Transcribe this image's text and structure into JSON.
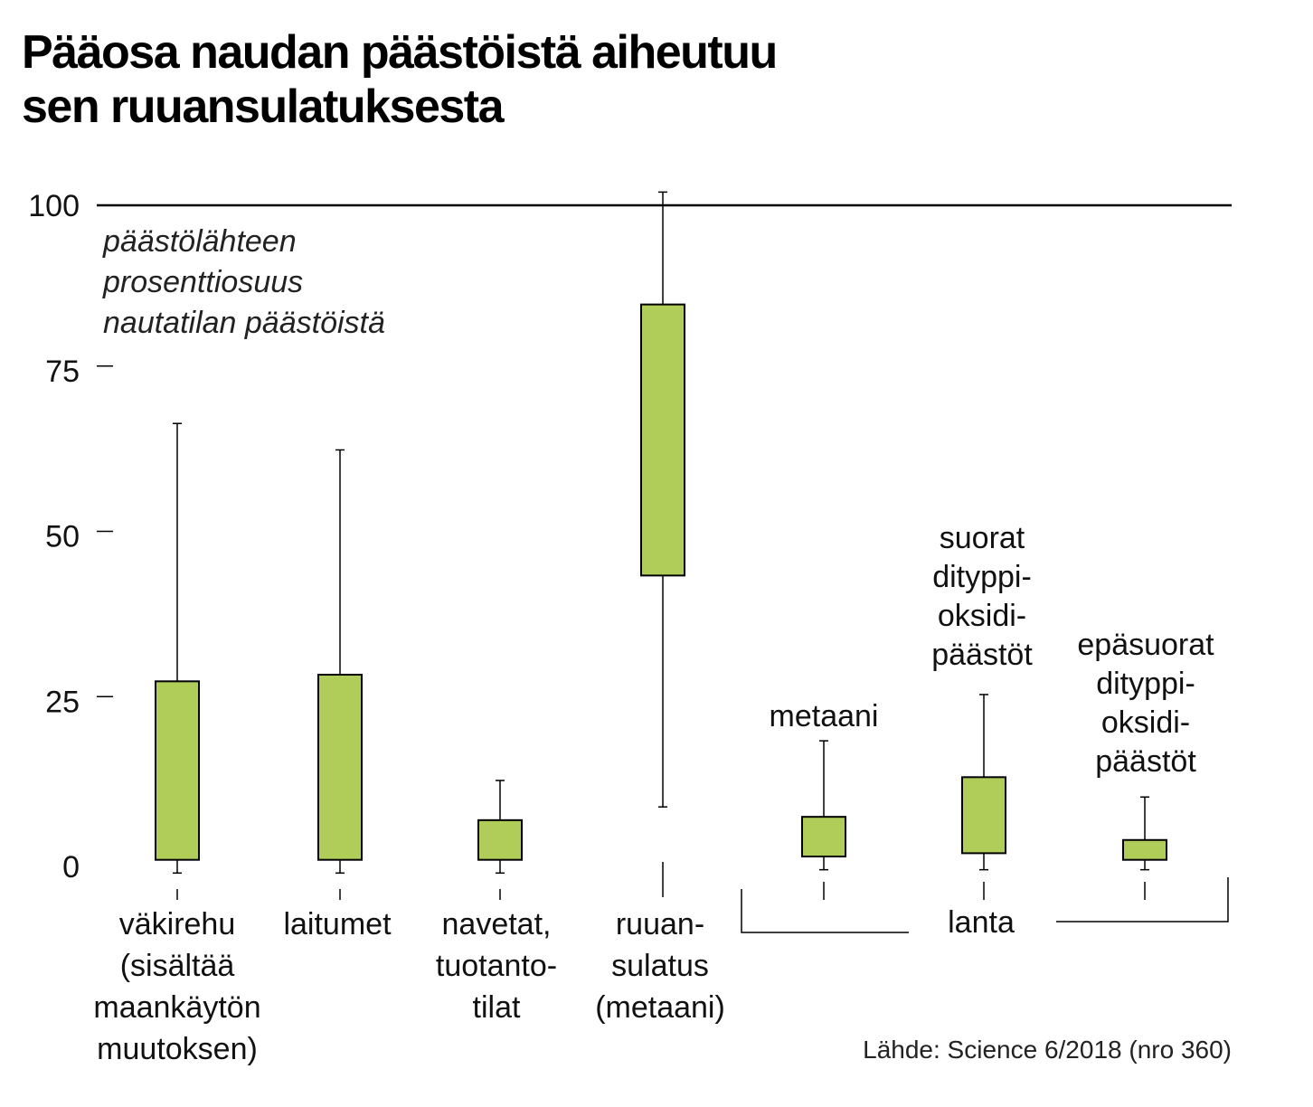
{
  "chart_data": {
    "type": "boxplot",
    "title_lines": [
      "Pääosa naudan päästöistä aiheutuu",
      "sen ruuansulatuksesta"
    ],
    "ylabel_lines": [
      "päästölähteen",
      "prosenttiosuus",
      "nautatilan päästöistä"
    ],
    "ylim": [
      0,
      100
    ],
    "yticks": [
      {
        "value": 0,
        "label": "0"
      },
      {
        "value": 25,
        "label": "25"
      },
      {
        "value": 50,
        "label": "50"
      },
      {
        "value": 75,
        "label": "75"
      },
      {
        "value": 100,
        "label": "100"
      }
    ],
    "box_color": "#b0cd59",
    "boxes": [
      {
        "min": -1,
        "q1": 1,
        "q3": 28,
        "max": 67
      },
      {
        "min": -1,
        "q1": 1,
        "q3": 29,
        "max": 63
      },
      {
        "min": -1,
        "q1": 1,
        "q3": 7,
        "max": 13
      },
      {
        "min": 9,
        "q1": 44,
        "q3": 85,
        "max": 102
      },
      {
        "min": -0.5,
        "q1": 1.5,
        "q3": 7.5,
        "max": 19
      },
      {
        "min": -0.5,
        "q1": 2,
        "q3": 13.5,
        "max": 26
      },
      {
        "min": -0.5,
        "q1": 1,
        "q3": 4,
        "max": 10.5
      }
    ],
    "category_labels": [
      [
        "väkirehu",
        "(sisältää",
        "maankäytön",
        "muutoksen)"
      ],
      [
        "laitumet"
      ],
      [
        "navetat,",
        "tuotanto-",
        "tilat"
      ],
      [
        "ruuan-",
        "sulatus",
        "(metaani)"
      ]
    ],
    "annotations": [
      [
        "metaani"
      ],
      [
        "suorat",
        "dityppi-",
        "oksidi-",
        "päästöt"
      ],
      [
        "epäsuorat",
        "dityppi-",
        "oksidi-",
        "päästöt"
      ]
    ],
    "group_label": "lanta",
    "source": "Lähde: Science 6/2018 (nro 360)"
  }
}
